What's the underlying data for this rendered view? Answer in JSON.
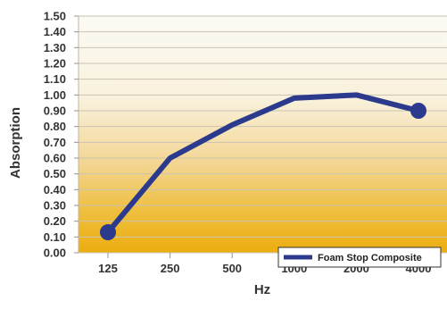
{
  "chart_data": {
    "type": "line",
    "categories": [
      "125",
      "250",
      "500",
      "1000",
      "2000",
      "4000"
    ],
    "series": [
      {
        "name": "Foam Stop Composite",
        "values": [
          0.13,
          0.6,
          0.81,
          0.98,
          1.0,
          0.9
        ]
      }
    ],
    "title": "",
    "xlabel": "Hz",
    "ylabel": "Absorption",
    "ylim": [
      0.0,
      1.5
    ],
    "yticks": [
      "0.00",
      "0.10",
      "0.20",
      "0.30",
      "0.40",
      "0.50",
      "0.60",
      "0.70",
      "0.80",
      "0.90",
      "1.00",
      "1.10",
      "1.20",
      "1.30",
      "1.40",
      "1.50"
    ],
    "grid": true,
    "legend_position": "bottom-right",
    "colors": {
      "series": "#2b3a8c",
      "grid": "#c9c3b3",
      "background_top": "#fbfaf4",
      "background_bottom": "#ecae10"
    }
  }
}
